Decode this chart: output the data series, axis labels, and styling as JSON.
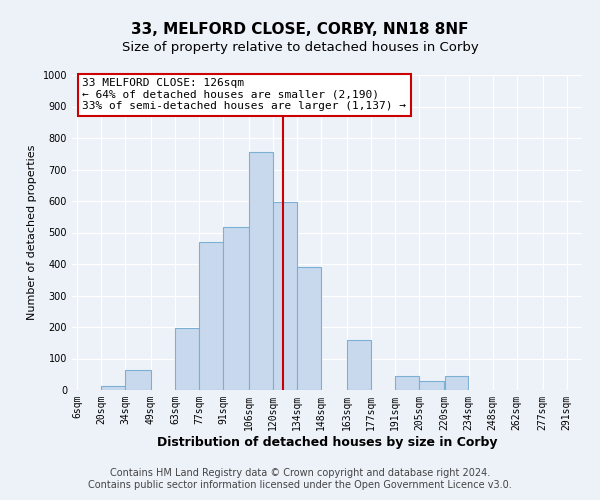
{
  "title": "33, MELFORD CLOSE, CORBY, NN18 8NF",
  "subtitle": "Size of property relative to detached houses in Corby",
  "xlabel": "Distribution of detached houses by size in Corby",
  "ylabel": "Number of detached properties",
  "bin_labels": [
    "6sqm",
    "20sqm",
    "34sqm",
    "49sqm",
    "63sqm",
    "77sqm",
    "91sqm",
    "106sqm",
    "120sqm",
    "134sqm",
    "148sqm",
    "163sqm",
    "177sqm",
    "191sqm",
    "205sqm",
    "220sqm",
    "234sqm",
    "248sqm",
    "262sqm",
    "277sqm",
    "291sqm"
  ],
  "bar_heights": [
    0,
    12,
    62,
    0,
    197,
    470,
    517,
    757,
    597,
    390,
    0,
    160,
    0,
    43,
    27,
    46,
    0,
    0,
    0,
    0,
    0
  ],
  "bar_color": "#c8d9ed",
  "bar_edge_color": "#7bafd4",
  "bin_edges": [
    6,
    20,
    34,
    49,
    63,
    77,
    91,
    106,
    120,
    134,
    148,
    163,
    177,
    191,
    205,
    220,
    234,
    248,
    262,
    277,
    291
  ],
  "property_line_x": 126,
  "annotation_title": "33 MELFORD CLOSE: 126sqm",
  "annotation_line1": "← 64% of detached houses are smaller (2,190)",
  "annotation_line2": "33% of semi-detached houses are larger (1,137) →",
  "annotation_box_color": "#ffffff",
  "annotation_box_edge_color": "#cc0000",
  "vline_color": "#cc0000",
  "footer_line1": "Contains HM Land Registry data © Crown copyright and database right 2024.",
  "footer_line2": "Contains public sector information licensed under the Open Government Licence v3.0.",
  "ylim": [
    0,
    1000
  ],
  "xlim_left": 3,
  "xlim_right": 300,
  "background_color": "#edf2f9",
  "grid_color": "#ffffff",
  "title_fontsize": 11,
  "subtitle_fontsize": 9.5,
  "xlabel_fontsize": 9,
  "ylabel_fontsize": 8,
  "tick_fontsize": 7,
  "footer_fontsize": 7,
  "annot_fontsize": 8
}
